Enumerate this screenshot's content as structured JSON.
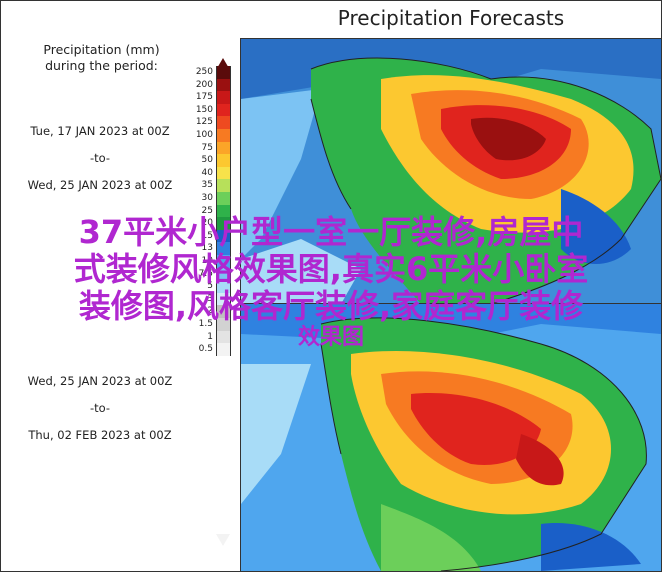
{
  "title": "Precipitation Forecasts",
  "legend": {
    "heading_line1": "Precipitation (mm)",
    "heading_line2": "during the period:",
    "values": [
      "250",
      "200",
      "175",
      "150",
      "125",
      "100",
      "75",
      "50",
      "40",
      "35",
      "30",
      "25",
      "20",
      "15",
      "13",
      "10",
      "7.5",
      "5",
      "3",
      "2",
      "1.5",
      "1",
      "0.5"
    ],
    "colors": [
      "#5a0b0b",
      "#9a1010",
      "#c81818",
      "#e0241e",
      "#ee4a20",
      "#f77a22",
      "#fba528",
      "#fcc830",
      "#f7e24a",
      "#b7e05a",
      "#6ccf5a",
      "#2fb24a",
      "#1f9a40",
      "#1a5fc8",
      "#2f82e0",
      "#4fa6ee",
      "#7cc3f3",
      "#a8dcf7",
      "#d4edf7",
      "#bfbfbf",
      "#d2d2d2",
      "#e3e3e3",
      "#f3f3f3"
    ]
  },
  "periods": [
    {
      "start": "Tue, 17 JAN 2023 at 00Z",
      "sep": "-to-",
      "end": "Wed, 25 JAN 2023 at 00Z"
    },
    {
      "start": "Wed, 25 JAN 2023 at 00Z",
      "sep": "-to-",
      "end": "Thu, 02 FEB 2023 at 00Z"
    }
  ],
  "watermark": {
    "line1": "37平米小户型一室一厅装修,房屋中",
    "line2": "式装修风格效果图,真实6平米小卧室",
    "line3": "装修图,风格客厅装修,家庭客厅装修",
    "line4": "效果图"
  }
}
